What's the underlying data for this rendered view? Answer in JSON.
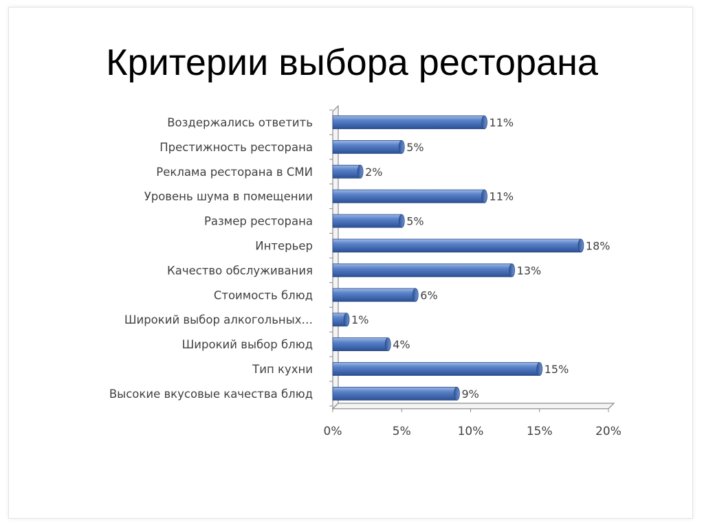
{
  "title": "Критерии выбора ресторана",
  "chart_data": {
    "type": "bar",
    "orientation": "horizontal",
    "title": "",
    "xlabel": "",
    "ylabel": "",
    "categories": [
      "Воздержались ответить",
      "Престижность ресторана",
      "Реклама ресторана в СМИ",
      "Уровень шума в помещении",
      "Размер ресторана",
      "Интерьер",
      "Качество обслуживания",
      "Стоимость блюд",
      "Широкий выбор алкогольных…",
      "Широкий выбор блюд",
      "Тип кухни",
      "Высокие вкусовые качества блюд"
    ],
    "values": [
      11,
      5,
      2,
      11,
      5,
      18,
      13,
      6,
      1,
      4,
      15,
      9
    ],
    "data_labels": [
      "11%",
      "5%",
      "2%",
      "11%",
      "5%",
      "18%",
      "13%",
      "6%",
      "1%",
      "4%",
      "15%",
      "9%"
    ],
    "x_ticks": [
      "0%",
      "5%",
      "10%",
      "15%",
      "20%"
    ],
    "xlim": [
      0,
      20
    ],
    "bar_color": "#4a72b8",
    "bar_shape": "cylinder",
    "grid": false,
    "legend": "none"
  }
}
